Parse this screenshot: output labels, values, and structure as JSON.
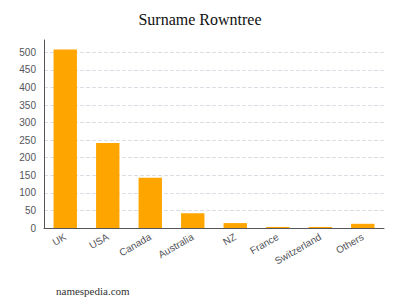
{
  "chart_data": {
    "type": "bar",
    "title": "Surname Rowntree",
    "categories": [
      "UK",
      "USA",
      "Canada",
      "Australia",
      "NZ",
      "France",
      "Switzerland",
      "Others"
    ],
    "values": [
      508,
      242,
      143,
      42,
      14,
      3,
      3,
      12
    ],
    "color": "#FFA500",
    "ylim": [
      0,
      535
    ],
    "yticks": [
      0,
      50,
      100,
      150,
      200,
      250,
      300,
      350,
      400,
      450,
      500
    ],
    "grid": true,
    "annotations": [
      "namespedia.com"
    ]
  }
}
